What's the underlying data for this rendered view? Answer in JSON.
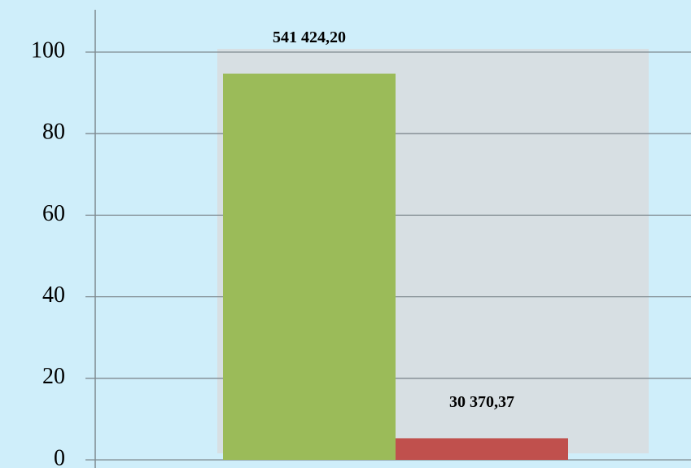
{
  "chart_data": {
    "type": "bar",
    "values": [
      94.7,
      5.3
    ],
    "colors": [
      "#9bbb59",
      "#c0504d"
    ],
    "annotations": [
      "541 424,20",
      "30 370,37"
    ],
    "ylim": [
      0,
      100
    ],
    "yticks": [
      0,
      20,
      40,
      60,
      80,
      100
    ],
    "grid": true
  }
}
